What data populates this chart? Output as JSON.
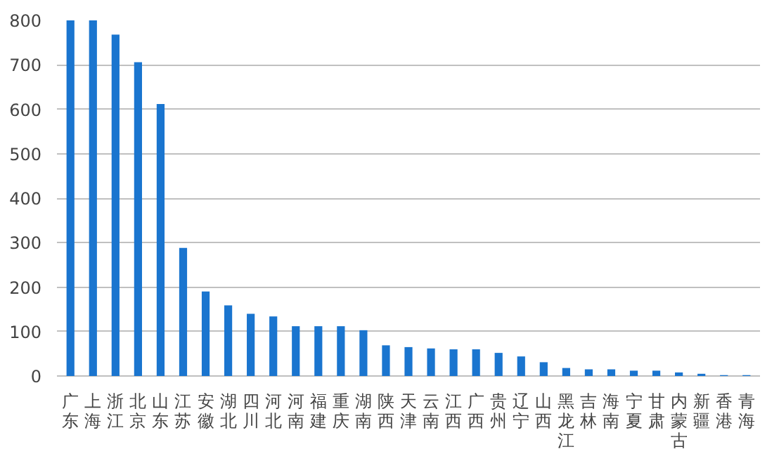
{
  "chart_data": {
    "type": "bar",
    "categories": [
      "广东",
      "上海",
      "浙江",
      "北京",
      "山东",
      "江苏",
      "安徽",
      "湖北",
      "四川",
      "河北",
      "河南",
      "福建",
      "重庆",
      "湖南",
      "陕西",
      "天津",
      "云南",
      "江西",
      "广西",
      "贵州",
      "辽宁",
      "山西",
      "黑龙江",
      "吉林",
      "海南",
      "宁夏",
      "甘肃",
      "内蒙古",
      "新疆",
      "香港",
      "青海"
    ],
    "values": [
      800,
      800,
      768,
      706,
      612,
      288,
      190,
      159,
      140,
      134,
      112,
      112,
      112,
      103,
      69,
      65,
      62,
      60,
      60,
      52,
      44,
      31,
      18,
      15,
      15,
      12,
      12,
      8,
      5,
      2,
      2
    ],
    "color": "#1a75cf",
    "ylim": [
      0,
      800
    ],
    "yticks": [
      0,
      100,
      200,
      300,
      400,
      500,
      600,
      700,
      800
    ],
    "grid": "y"
  }
}
